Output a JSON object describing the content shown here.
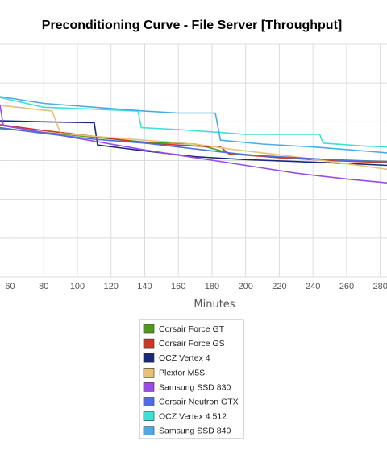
{
  "chart_data": {
    "type": "line",
    "title": "Preconditioning Curve - File Server [Throughput]",
    "xlabel": "Minutes",
    "ylabel": "",
    "x_ticks": [
      60,
      80,
      100,
      120,
      140,
      160,
      180,
      200,
      220,
      240,
      260,
      280
    ],
    "xlim": [
      54,
      284
    ],
    "ylim": [
      0,
      12
    ],
    "y_gridlines": [
      0,
      2,
      4,
      6,
      8,
      10,
      12
    ],
    "grid": true,
    "legend_position": "bottom-center",
    "series": [
      {
        "name": "Corsair Force GT",
        "color": "#4e9a1e",
        "points": [
          [
            54,
            7.65
          ],
          [
            80,
            7.45
          ],
          [
            110,
            7.2
          ],
          [
            140,
            6.95
          ],
          [
            170,
            6.85
          ],
          [
            190,
            6.4
          ],
          [
            220,
            6.15
          ],
          [
            250,
            6.05
          ],
          [
            284,
            5.95
          ]
        ]
      },
      {
        "name": "Corsair Force GS",
        "color": "#c83a23",
        "points": [
          [
            54,
            7.85
          ],
          [
            80,
            7.55
          ],
          [
            110,
            7.25
          ],
          [
            140,
            6.9
          ],
          [
            170,
            6.75
          ],
          [
            185,
            6.7
          ],
          [
            190,
            6.35
          ],
          [
            220,
            6.15
          ],
          [
            250,
            6.0
          ],
          [
            284,
            5.9
          ]
        ]
      },
      {
        "name": "OCZ Vertex 4",
        "color": "#1a2a7a",
        "points": [
          [
            54,
            8.05
          ],
          [
            80,
            8.0
          ],
          [
            110,
            7.95
          ],
          [
            112,
            6.8
          ],
          [
            140,
            6.5
          ],
          [
            170,
            6.2
          ],
          [
            200,
            6.05
          ],
          [
            230,
            5.95
          ],
          [
            260,
            5.85
          ],
          [
            284,
            5.75
          ]
        ]
      },
      {
        "name": "Plextor M5S",
        "color": "#e8c078",
        "points": [
          [
            54,
            8.85
          ],
          [
            85,
            8.55
          ],
          [
            90,
            7.4
          ],
          [
            110,
            7.25
          ],
          [
            140,
            7.05
          ],
          [
            170,
            6.85
          ],
          [
            190,
            6.6
          ],
          [
            220,
            6.3
          ],
          [
            250,
            5.95
          ],
          [
            284,
            5.55
          ]
        ]
      },
      {
        "name": "Samsung SSD 830",
        "color": "#9a4de6",
        "points": [
          [
            54,
            8.85
          ],
          [
            56,
            7.8
          ],
          [
            80,
            7.45
          ],
          [
            110,
            7.0
          ],
          [
            140,
            6.55
          ],
          [
            170,
            6.15
          ],
          [
            200,
            5.75
          ],
          [
            230,
            5.35
          ],
          [
            260,
            5.05
          ],
          [
            284,
            4.85
          ]
        ]
      },
      {
        "name": "Corsair Neutron GTX",
        "color": "#4f6fe0",
        "points": [
          [
            54,
            7.7
          ],
          [
            80,
            7.4
          ],
          [
            110,
            7.1
          ],
          [
            140,
            6.9
          ],
          [
            170,
            6.6
          ],
          [
            200,
            6.3
          ],
          [
            230,
            6.15
          ],
          [
            260,
            6.0
          ],
          [
            284,
            5.95
          ]
        ]
      },
      {
        "name": "OCZ Vertex 4 512",
        "color": "#3fe0d8",
        "points": [
          [
            54,
            9.25
          ],
          [
            80,
            8.75
          ],
          [
            110,
            8.65
          ],
          [
            136,
            8.55
          ],
          [
            138,
            7.7
          ],
          [
            160,
            7.6
          ],
          [
            185,
            7.45
          ],
          [
            200,
            7.35
          ],
          [
            244,
            7.35
          ],
          [
            246,
            6.9
          ],
          [
            270,
            6.75
          ],
          [
            284,
            6.7
          ]
        ]
      },
      {
        "name": "Samsung SSD 840",
        "color": "#4aaae8",
        "points": [
          [
            54,
            9.3
          ],
          [
            80,
            8.95
          ],
          [
            110,
            8.75
          ],
          [
            140,
            8.55
          ],
          [
            160,
            8.45
          ],
          [
            182,
            8.45
          ],
          [
            185,
            7.05
          ],
          [
            210,
            6.85
          ],
          [
            240,
            6.7
          ],
          [
            270,
            6.5
          ],
          [
            284,
            6.4
          ]
        ]
      }
    ]
  }
}
